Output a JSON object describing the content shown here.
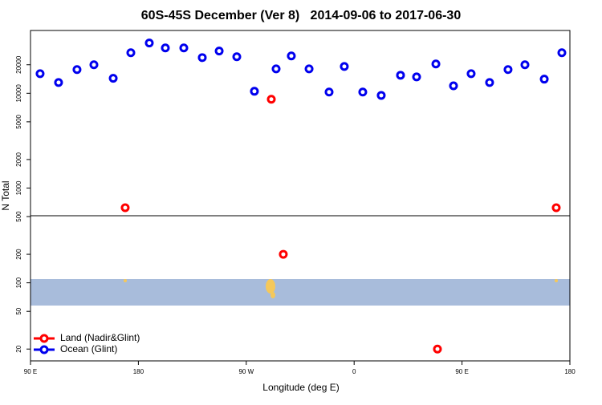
{
  "chart_data": {
    "type": "scatter",
    "title": "60S-45S December (Ver 8)   2014-09-06 to 2017-06-30",
    "xlabel": "Longitude (deg E)",
    "ylabel": "N Total",
    "xlim": [
      90,
      540
    ],
    "xticks": [
      {
        "value": 90,
        "label": "90 E"
      },
      {
        "value": 180,
        "label": "180"
      },
      {
        "value": 270,
        "label": "90 W"
      },
      {
        "value": 360,
        "label": "0"
      },
      {
        "value": 450,
        "label": "90 E"
      },
      {
        "value": 540,
        "label": "180"
      }
    ],
    "ylim": [
      15,
      46000
    ],
    "log_y": true,
    "yticks": [
      20,
      50,
      100,
      200,
      500,
      1000,
      2000,
      5000,
      10000,
      20000
    ],
    "legend": "bottom-left",
    "series": [
      {
        "name": "Land (Nadir&Glint)",
        "color": "#ff0000",
        "x": [
          169,
          290.9,
          300.9,
          429.5,
          528.6
        ],
        "values": [
          620,
          8650,
          200,
          20,
          620
        ]
      },
      {
        "name": "Ocean (Glint)",
        "color": "#0000ee",
        "x": [
          98,
          113.4,
          128.8,
          142.9,
          159,
          173.7,
          189.1,
          202.5,
          217.9,
          233.3,
          247.4,
          262.1,
          276.8,
          294.9,
          307.6,
          322.4,
          339.1,
          351.8,
          367.2,
          382.6,
          398.7,
          412.1,
          428.2,
          442.9,
          457.6,
          473,
          488.4,
          502.5,
          518.6,
          533.3
        ],
        "values": [
          16100,
          13000,
          17800,
          20000,
          14400,
          26800,
          33900,
          30100,
          30100,
          23800,
          27900,
          24300,
          10500,
          18100,
          24800,
          18100,
          10300,
          19200,
          10300,
          9500,
          15500,
          14900,
          20400,
          12000,
          16100,
          13000,
          17800,
          20000,
          14100,
          26800
        ]
      }
    ]
  }
}
